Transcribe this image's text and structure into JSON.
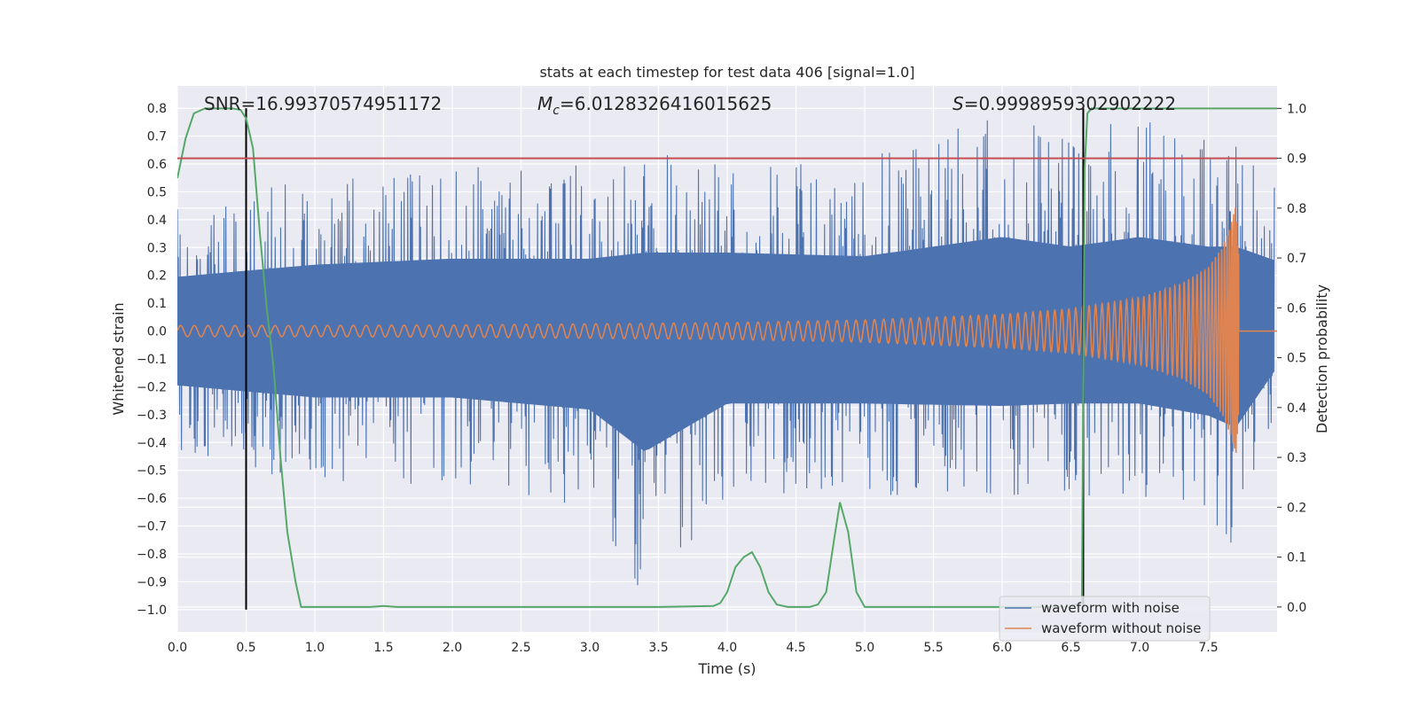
{
  "chart_data": {
    "type": "line",
    "title": "stats at each timestep for test data 406 [signal=1.0]",
    "xlabel": "Time (s)",
    "ylabel": "Whitened strain",
    "y2label": "Detection probability",
    "xlim": [
      0.0,
      8.0
    ],
    "ylim": [
      -1.08,
      0.88
    ],
    "y2lim": [
      -0.05,
      1.045
    ],
    "xticks": [
      "0.0",
      "0.5",
      "1.0",
      "1.5",
      "2.0",
      "2.5",
      "3.0",
      "3.5",
      "4.0",
      "4.5",
      "5.0",
      "5.5",
      "6.0",
      "6.5",
      "7.0",
      "7.5"
    ],
    "yticks": [
      "0.8",
      "0.7",
      "0.6",
      "0.5",
      "0.4",
      "0.3",
      "0.2",
      "0.1",
      "0.0",
      "−0.1",
      "−0.2",
      "−0.3",
      "−0.4",
      "−0.5",
      "−0.6",
      "−0.7",
      "−0.8",
      "−0.9",
      "−1.0"
    ],
    "y2ticks": [
      "1.0",
      "0.9",
      "0.8",
      "0.7",
      "0.6",
      "0.5",
      "0.4",
      "0.3",
      "0.2",
      "0.1",
      "0.0"
    ],
    "annotations": {
      "snr": "SNR=16.99370574951172",
      "mc_symbol": "M",
      "mc_sub": "c",
      "mc_value": "=6.0128326416015625",
      "s_symbol": "S",
      "s_value": "=0.9998959302902222"
    },
    "series": [
      {
        "name": "waveform with noise",
        "color": "#4c72b0",
        "envelope": [
          [
            0.0,
            0.45,
            -0.45
          ],
          [
            1.0,
            0.55,
            -0.55
          ],
          [
            2.0,
            0.6,
            -0.55
          ],
          [
            3.0,
            0.6,
            -0.65
          ],
          [
            3.4,
            0.65,
            -1.0
          ],
          [
            4.0,
            0.65,
            -0.6
          ],
          [
            5.0,
            0.62,
            -0.6
          ],
          [
            6.0,
            0.78,
            -0.62
          ],
          [
            6.5,
            0.7,
            -0.6
          ],
          [
            7.0,
            0.78,
            -0.6
          ],
          [
            7.5,
            0.7,
            -0.7
          ],
          [
            7.7,
            0.7,
            -0.8
          ],
          [
            8.0,
            0.58,
            -0.3
          ]
        ]
      },
      {
        "name": "waveform without noise",
        "color": "#dd8452",
        "envelope": [
          [
            0.0,
            0.02
          ],
          [
            1.0,
            0.02
          ],
          [
            2.0,
            0.022
          ],
          [
            3.0,
            0.026
          ],
          [
            4.0,
            0.03
          ],
          [
            5.0,
            0.04
          ],
          [
            6.0,
            0.06
          ],
          [
            6.5,
            0.08
          ],
          [
            7.0,
            0.12
          ],
          [
            7.3,
            0.17
          ],
          [
            7.5,
            0.23
          ],
          [
            7.6,
            0.3
          ],
          [
            7.65,
            0.36
          ],
          [
            7.7,
            0.45
          ],
          [
            7.72,
            0.3
          ],
          [
            7.73,
            0.0
          ],
          [
            8.0,
            0.0
          ]
        ]
      },
      {
        "name": "Detection probability",
        "color": "#55a868",
        "axis": "right",
        "x": [
          0.0,
          0.06,
          0.12,
          0.2,
          0.3,
          0.4,
          0.46,
          0.5,
          0.55,
          0.6,
          0.65,
          0.7,
          0.75,
          0.8,
          0.86,
          0.9,
          1.0,
          1.2,
          1.4,
          1.5,
          1.6,
          2.0,
          3.0,
          3.5,
          3.9,
          3.95,
          4.0,
          4.06,
          4.12,
          4.18,
          4.24,
          4.3,
          4.36,
          4.44,
          4.52,
          4.6,
          4.66,
          4.72,
          4.78,
          4.82,
          4.88,
          4.94,
          5.0,
          5.2,
          6.0,
          6.5,
          6.58,
          6.6,
          6.62,
          6.65,
          6.7,
          7.0,
          7.5,
          8.0
        ],
        "y": [
          0.86,
          0.94,
          0.99,
          1.0,
          1.0,
          1.0,
          0.997,
          0.98,
          0.92,
          0.75,
          0.6,
          0.48,
          0.3,
          0.15,
          0.05,
          0.0,
          0.0,
          0.0,
          0.0,
          0.002,
          0.0,
          0.0,
          0.0,
          0.0,
          0.002,
          0.008,
          0.03,
          0.08,
          0.1,
          0.11,
          0.08,
          0.03,
          0.005,
          0.0,
          0.0,
          0.0,
          0.005,
          0.03,
          0.14,
          0.21,
          0.15,
          0.03,
          0.0,
          0.0,
          0.0,
          0.0,
          0.01,
          0.88,
          0.99,
          1.0,
          1.0,
          1.0,
          1.0,
          1.0
        ]
      },
      {
        "name": "threshold",
        "color": "#c44e52",
        "axis": "right",
        "value": 0.9
      },
      {
        "name": "event markers",
        "color": "#000000",
        "x": [
          0.5,
          6.59
        ],
        "ymin": -1.0,
        "ymax": 0.8
      }
    ],
    "legend": {
      "placement": "lower right",
      "entries": [
        "waveform with noise",
        "waveform without noise"
      ]
    },
    "grid": true,
    "background_color": "#eaeaf2"
  }
}
